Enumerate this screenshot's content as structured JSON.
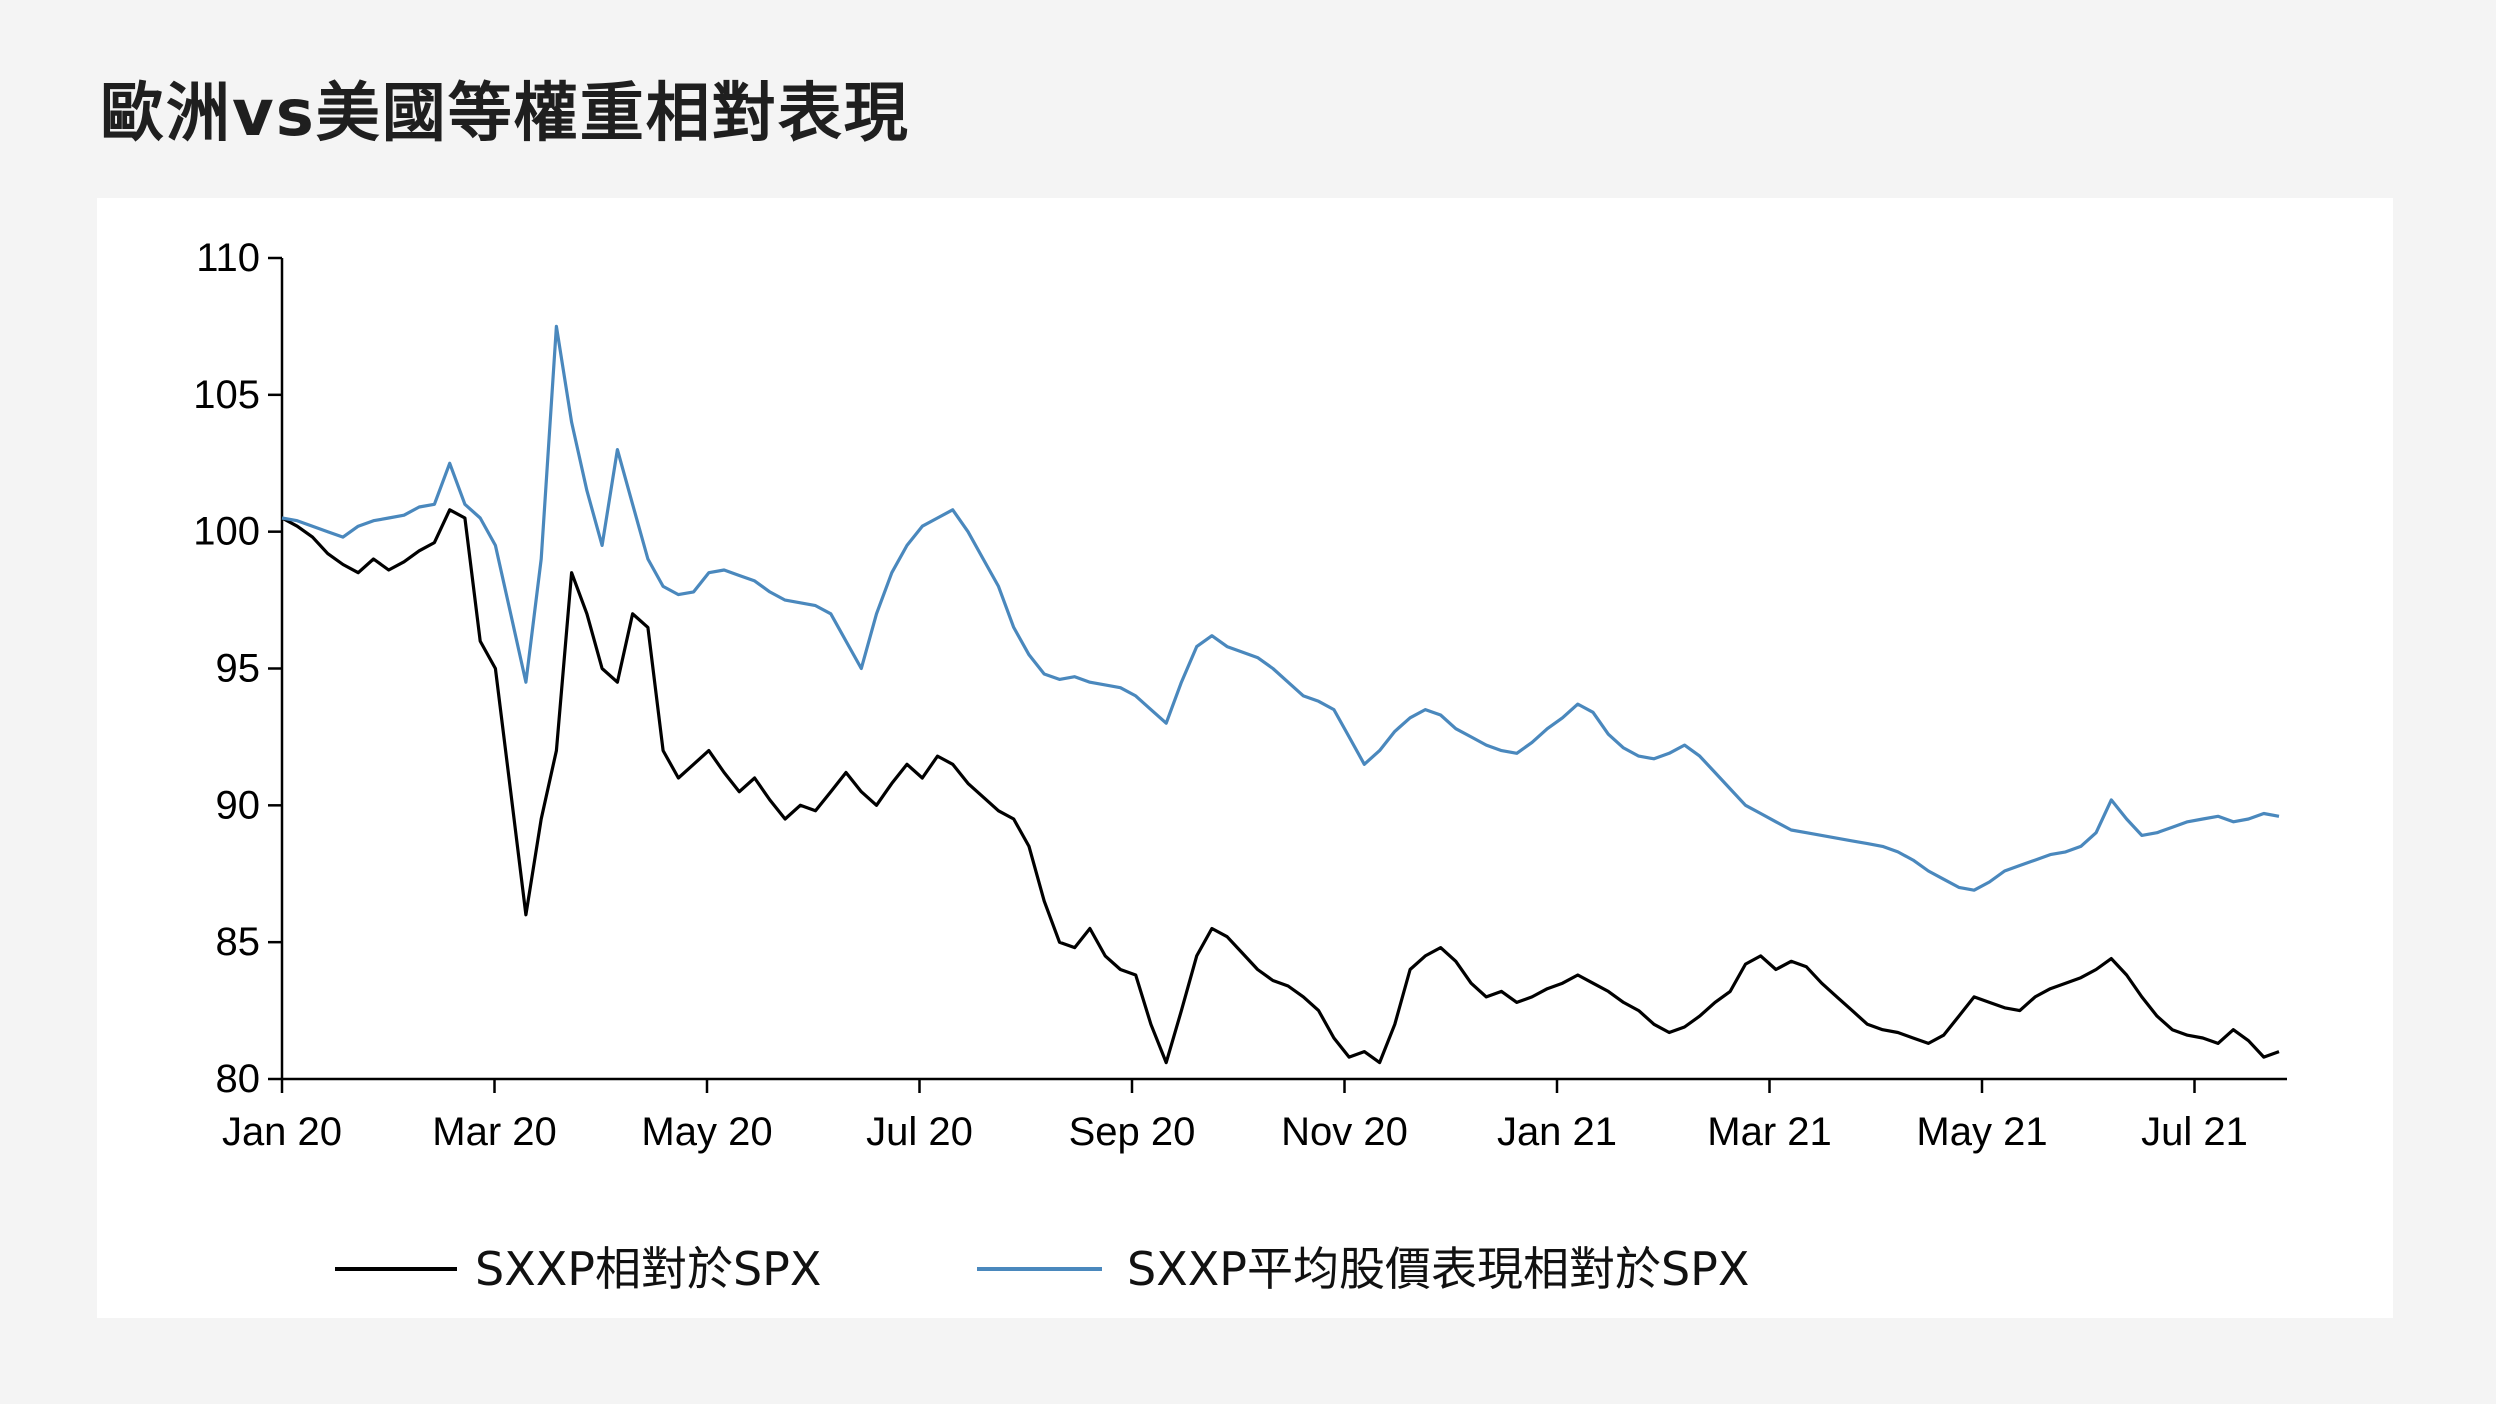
{
  "title": "歐洲vs美國等權重相對表現",
  "chart_data": {
    "type": "line",
    "title": "歐洲vs美國等權重相對表現",
    "xlabel": "",
    "ylabel": "",
    "ylim": [
      80,
      110
    ],
    "yticks": [
      80,
      85,
      90,
      95,
      100,
      105,
      110
    ],
    "xticks": [
      "Jan 20",
      "Mar 20",
      "May 20",
      "Jul 20",
      "Sep 20",
      "Nov 20",
      "Jan 21",
      "Mar 21",
      "May 21",
      "Jul 21"
    ],
    "grid": false,
    "legend": "bottom",
    "series": [
      {
        "name": "SXXP相對於SPX",
        "color": "#000000",
        "values": [
          100.5,
          100.2,
          99.8,
          99.2,
          98.8,
          98.5,
          99.0,
          98.6,
          98.9,
          99.3,
          99.6,
          100.8,
          100.5,
          96.0,
          95.0,
          90.5,
          86.0,
          89.5,
          92.0,
          98.5,
          97.0,
          95.0,
          94.5,
          97.0,
          96.5,
          92.0,
          91.0,
          91.5,
          92.0,
          91.2,
          90.5,
          91.0,
          90.2,
          89.5,
          90.0,
          89.8,
          90.5,
          91.2,
          90.5,
          90.0,
          90.8,
          91.5,
          91.0,
          91.8,
          91.5,
          90.8,
          90.3,
          89.8,
          89.5,
          88.5,
          86.5,
          85.0,
          84.8,
          85.5,
          84.5,
          84.0,
          83.8,
          82.0,
          80.6,
          82.5,
          84.5,
          85.5,
          85.2,
          84.6,
          84.0,
          83.6,
          83.4,
          83.0,
          82.5,
          81.5,
          80.8,
          81.0,
          80.6,
          82.0,
          84.0,
          84.5,
          84.8,
          84.3,
          83.5,
          83.0,
          83.2,
          82.8,
          83.0,
          83.3,
          83.5,
          83.8,
          83.5,
          83.2,
          82.8,
          82.5,
          82.0,
          81.7,
          81.9,
          82.3,
          82.8,
          83.2,
          84.2,
          84.5,
          84.0,
          84.3,
          84.1,
          83.5,
          83.0,
          82.5,
          82.0,
          81.8,
          81.7,
          81.5,
          81.3,
          81.6,
          82.3,
          83.0,
          82.8,
          82.6,
          82.5,
          83.0,
          83.3,
          83.5,
          83.7,
          84.0,
          84.4,
          83.8,
          83.0,
          82.3,
          81.8,
          81.6,
          81.5,
          81.3,
          81.8,
          81.4,
          80.8,
          81.0
        ]
      },
      {
        "name": "SXXP平均股價表現相對於SPX",
        "color": "#4a88bd",
        "values": [
          100.5,
          100.4,
          100.2,
          100.0,
          99.8,
          100.2,
          100.4,
          100.5,
          100.6,
          100.9,
          101.0,
          102.5,
          101.0,
          100.5,
          99.5,
          97.0,
          94.5,
          99.0,
          107.5,
          104.0,
          101.5,
          99.5,
          103.0,
          101.0,
          99.0,
          98.0,
          97.7,
          97.8,
          98.5,
          98.6,
          98.4,
          98.2,
          97.8,
          97.5,
          97.4,
          97.3,
          97.0,
          96.0,
          95.0,
          97.0,
          98.5,
          99.5,
          100.2,
          100.5,
          100.8,
          100.0,
          99.0,
          98.0,
          96.5,
          95.5,
          94.8,
          94.6,
          94.7,
          94.5,
          94.4,
          94.3,
          94.0,
          93.5,
          93.0,
          94.5,
          95.8,
          96.2,
          95.8,
          95.6,
          95.4,
          95.0,
          94.5,
          94.0,
          93.8,
          93.5,
          92.5,
          91.5,
          92.0,
          92.7,
          93.2,
          93.5,
          93.3,
          92.8,
          92.5,
          92.2,
          92.0,
          91.9,
          92.3,
          92.8,
          93.2,
          93.7,
          93.4,
          92.6,
          92.1,
          91.8,
          91.7,
          91.9,
          92.2,
          91.8,
          91.2,
          90.6,
          90.0,
          89.7,
          89.4,
          89.1,
          89.0,
          88.9,
          88.8,
          88.7,
          88.6,
          88.5,
          88.3,
          88.0,
          87.6,
          87.3,
          87.0,
          86.9,
          87.2,
          87.6,
          87.8,
          88.0,
          88.2,
          88.3,
          88.5,
          89.0,
          90.2,
          89.5,
          88.9,
          89.0,
          89.2,
          89.4,
          89.5,
          89.6,
          89.4,
          89.5,
          89.7,
          89.6
        ]
      }
    ]
  }
}
